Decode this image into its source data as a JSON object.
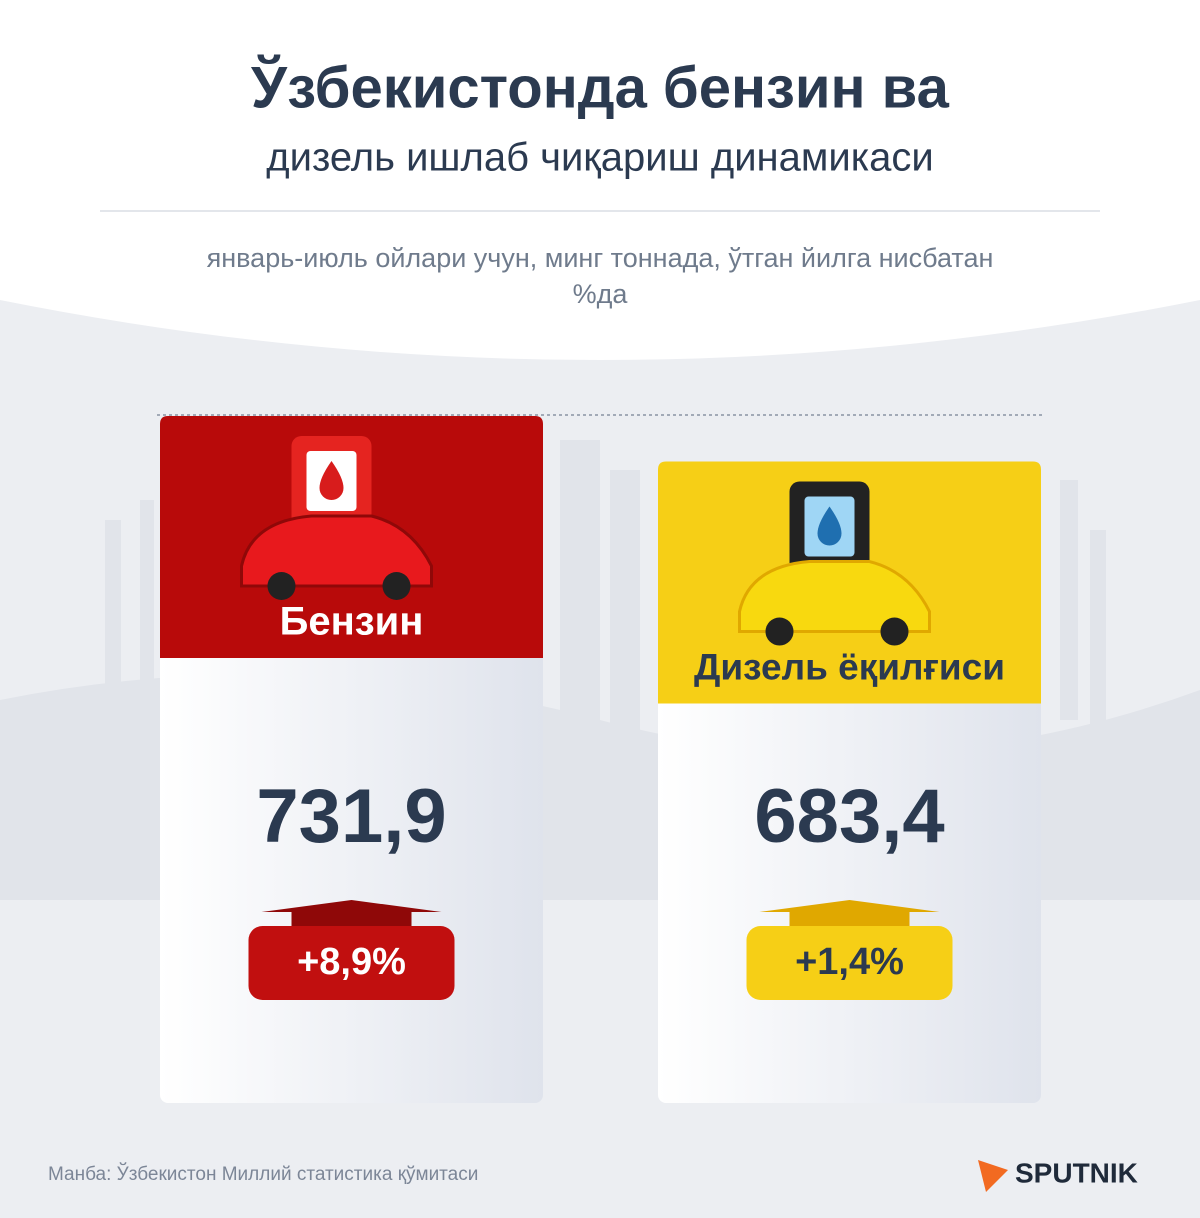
{
  "chart_data": {
    "type": "bar",
    "title": "Ўзбекистонда бензин ва",
    "subtitle": "дизель ишлаб чиқариш динамикаси",
    "note": "январь-июль ойлари учун, минг тоннада, ўтган йилга нисбатан %да",
    "categories": [
      "Бензин",
      "Дизель ёқилғиси"
    ],
    "values": [
      731.9,
      683.4
    ],
    "value_labels": [
      "731,9",
      "683,4"
    ],
    "changes": [
      8.9,
      1.4
    ],
    "change_labels": [
      "+8,9%",
      "+1,4%"
    ],
    "colors": [
      "#b80a0a",
      "#f6cf16"
    ],
    "source": "Манба: Ўзбекистон Миллий статистика қўмитаси",
    "brand": "SPUTNIK"
  }
}
